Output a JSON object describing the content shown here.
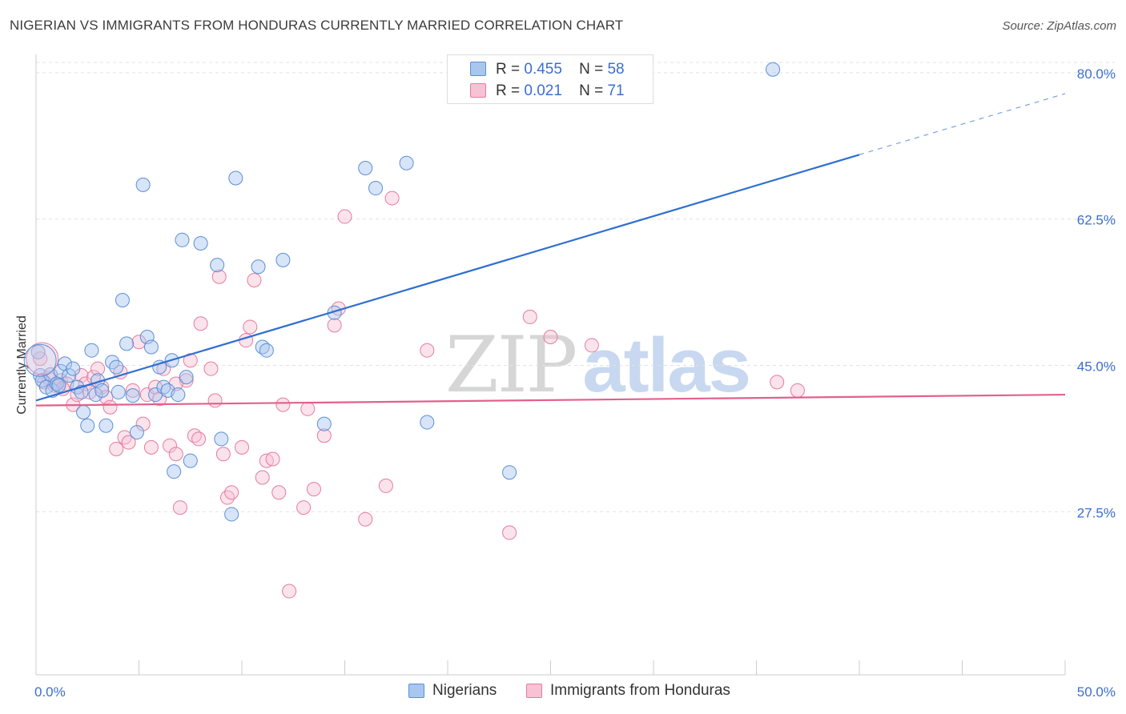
{
  "chart_data": {
    "type": "scatter",
    "title": "NIGERIAN VS IMMIGRANTS FROM HONDURAS CURRENTLY MARRIED CORRELATION CHART",
    "source": "Source: ZipAtlas.com",
    "xlabel": "",
    "ylabel": "Currently Married",
    "xlim": [
      0,
      50
    ],
    "ylim": [
      8,
      82
    ],
    "x_tick_labels": [
      "0.0%",
      "50.0%"
    ],
    "y_tick_values": [
      27.5,
      45.0,
      62.5,
      80.0
    ],
    "y_tick_labels": [
      "27.5%",
      "45.0%",
      "62.5%",
      "80.0%"
    ],
    "grid": true,
    "watermark": {
      "left": "ZIP",
      "right": "atlas"
    },
    "legend_top": [
      {
        "r_label": "R =",
        "r": "0.455",
        "n_label": "N =",
        "n": "58"
      },
      {
        "r_label": "R =",
        "r": "0.021",
        "n_label": "N =",
        "n": "71"
      }
    ],
    "series": [
      {
        "name": "Nigerians",
        "color": "#5b8fd6",
        "fill": "#a9c6ef",
        "trend": {
          "x0": 0,
          "y0": 40.8,
          "x1": 40,
          "y1": 70.2,
          "dash_to_x": 50,
          "dash_to_y": 77.5
        },
        "points": [
          [
            0.2,
            43.8
          ],
          [
            0.3,
            43.2
          ],
          [
            0.5,
            42.4
          ],
          [
            0.7,
            43.9
          ],
          [
            0.8,
            42.0
          ],
          [
            1.0,
            42.8
          ],
          [
            1.2,
            44.3
          ],
          [
            1.4,
            45.2
          ],
          [
            1.6,
            43.8
          ],
          [
            1.8,
            44.6
          ],
          [
            2.0,
            42.4
          ],
          [
            2.2,
            41.8
          ],
          [
            2.3,
            39.4
          ],
          [
            2.5,
            37.8
          ],
          [
            2.7,
            46.8
          ],
          [
            2.9,
            41.5
          ],
          [
            3.0,
            43.2
          ],
          [
            3.2,
            42.0
          ],
          [
            3.4,
            37.8
          ],
          [
            3.7,
            45.4
          ],
          [
            3.9,
            44.8
          ],
          [
            4.0,
            41.8
          ],
          [
            4.2,
            52.8
          ],
          [
            4.4,
            47.6
          ],
          [
            4.7,
            41.4
          ],
          [
            4.9,
            37.0
          ],
          [
            5.2,
            66.6
          ],
          [
            5.4,
            48.4
          ],
          [
            5.6,
            47.2
          ],
          [
            5.8,
            41.5
          ],
          [
            6.0,
            44.8
          ],
          [
            6.2,
            42.4
          ],
          [
            6.4,
            42.0
          ],
          [
            6.6,
            45.6
          ],
          [
            6.7,
            32.3
          ],
          [
            6.9,
            41.5
          ],
          [
            7.1,
            60.0
          ],
          [
            7.3,
            43.6
          ],
          [
            7.5,
            33.6
          ],
          [
            8.0,
            59.6
          ],
          [
            8.8,
            57.0
          ],
          [
            9.0,
            36.2
          ],
          [
            9.5,
            27.2
          ],
          [
            9.7,
            67.4
          ],
          [
            10.8,
            56.8
          ],
          [
            11.0,
            47.2
          ],
          [
            11.2,
            46.8
          ],
          [
            12.0,
            57.6
          ],
          [
            14.0,
            38.0
          ],
          [
            14.5,
            51.3
          ],
          [
            16.0,
            68.6
          ],
          [
            16.5,
            66.2
          ],
          [
            18.0,
            69.2
          ],
          [
            19.0,
            38.2
          ],
          [
            23.0,
            32.2
          ],
          [
            35.8,
            80.4
          ],
          [
            0.1,
            46.6
          ],
          [
            1.1,
            42.6
          ]
        ]
      },
      {
        "name": "Immigrants from Honduras",
        "color": "#e57ba0",
        "fill": "#f7c2d4",
        "trend": {
          "x0": 0,
          "y0": 40.2,
          "x1": 50,
          "y1": 41.5
        },
        "points": [
          [
            0.2,
            45.8
          ],
          [
            0.6,
            43.5
          ],
          [
            0.9,
            42.6
          ],
          [
            1.2,
            43.2
          ],
          [
            1.5,
            42.8
          ],
          [
            1.8,
            40.3
          ],
          [
            2.0,
            41.5
          ],
          [
            2.2,
            43.8
          ],
          [
            2.4,
            42.8
          ],
          [
            2.6,
            41.8
          ],
          [
            2.8,
            43.6
          ],
          [
            3.0,
            44.6
          ],
          [
            3.2,
            42.4
          ],
          [
            3.4,
            41.2
          ],
          [
            3.6,
            40.0
          ],
          [
            3.9,
            35.0
          ],
          [
            4.1,
            44.2
          ],
          [
            4.3,
            36.4
          ],
          [
            4.5,
            35.8
          ],
          [
            4.7,
            42.0
          ],
          [
            5.0,
            47.8
          ],
          [
            5.2,
            38.0
          ],
          [
            5.4,
            41.5
          ],
          [
            5.6,
            35.2
          ],
          [
            5.8,
            42.4
          ],
          [
            6.0,
            41.0
          ],
          [
            6.2,
            44.6
          ],
          [
            6.5,
            35.4
          ],
          [
            6.8,
            34.4
          ],
          [
            7.0,
            28.0
          ],
          [
            7.3,
            43.2
          ],
          [
            7.5,
            45.6
          ],
          [
            7.7,
            36.6
          ],
          [
            7.9,
            36.2
          ],
          [
            8.0,
            50.0
          ],
          [
            8.5,
            44.6
          ],
          [
            8.7,
            40.8
          ],
          [
            8.9,
            55.6
          ],
          [
            9.1,
            34.4
          ],
          [
            9.3,
            29.2
          ],
          [
            9.5,
            29.8
          ],
          [
            10.0,
            35.2
          ],
          [
            10.2,
            48.0
          ],
          [
            10.4,
            49.6
          ],
          [
            10.6,
            55.2
          ],
          [
            11.0,
            31.6
          ],
          [
            11.2,
            33.6
          ],
          [
            11.5,
            33.8
          ],
          [
            11.8,
            29.8
          ],
          [
            12.0,
            40.3
          ],
          [
            12.3,
            18.0
          ],
          [
            13.0,
            28.0
          ],
          [
            13.2,
            39.8
          ],
          [
            13.5,
            30.2
          ],
          [
            14.0,
            36.6
          ],
          [
            14.5,
            49.8
          ],
          [
            14.7,
            51.8
          ],
          [
            15.0,
            62.8
          ],
          [
            16.0,
            26.6
          ],
          [
            17.0,
            30.6
          ],
          [
            17.3,
            65.0
          ],
          [
            19.0,
            46.8
          ],
          [
            23.0,
            25.0
          ],
          [
            24.0,
            50.8
          ],
          [
            25.0,
            48.4
          ],
          [
            27.0,
            47.4
          ],
          [
            36.0,
            43.0
          ],
          [
            37.0,
            42.0
          ],
          [
            0.4,
            43.0
          ],
          [
            1.3,
            42.2
          ],
          [
            6.8,
            42.8
          ]
        ]
      }
    ]
  },
  "legend_bottom": [
    "Nigerians",
    "Immigrants from Honduras"
  ]
}
